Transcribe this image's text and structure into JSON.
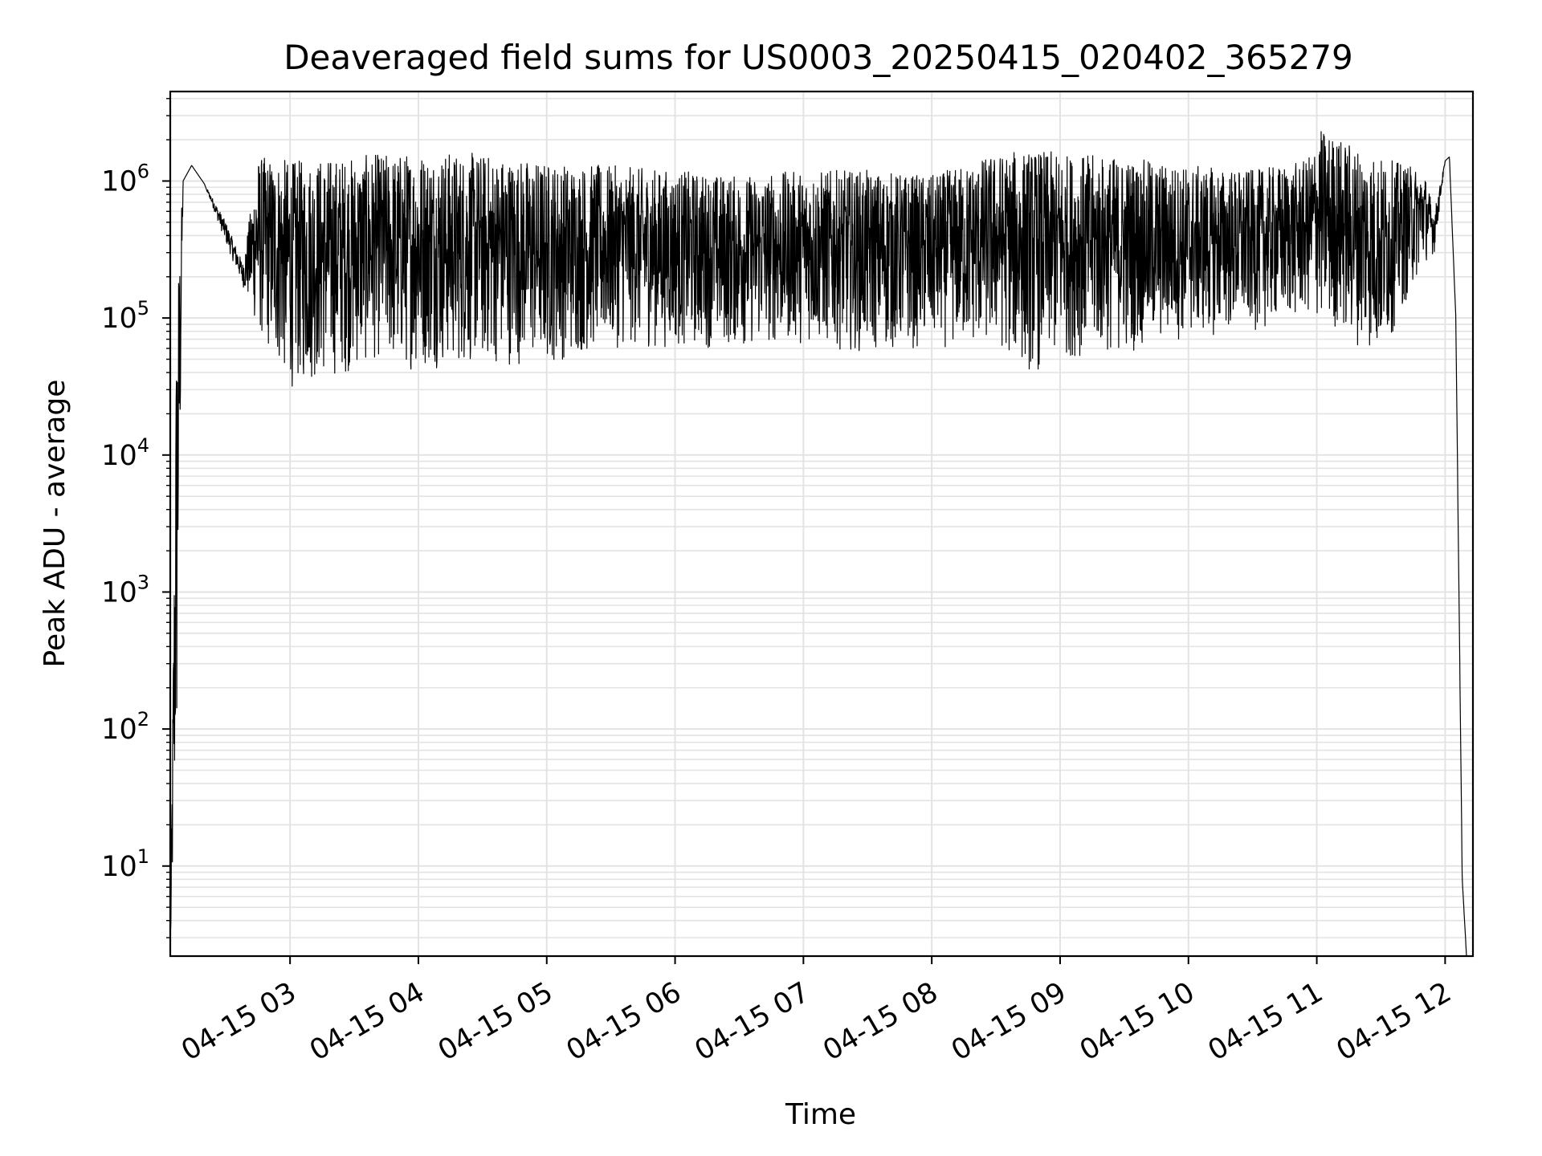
{
  "chart_data": {
    "type": "line",
    "title": "Deaveraged field sums for US0003_20250415_020402_365279",
    "xlabel": "Time",
    "ylabel": "Peak ADU - average",
    "yscale": "log",
    "ylim": [
      2.2,
      4500000
    ],
    "xlim": [
      "2025-04-15 02:04",
      "2025-04-15 12:13"
    ],
    "grid": true,
    "x_ticks": [
      "04-15 03",
      "04-15 04",
      "04-15 05",
      "04-15 06",
      "04-15 07",
      "04-15 08",
      "04-15 09",
      "04-15 10",
      "04-15 11",
      "04-15 12"
    ],
    "y_ticks": [
      {
        "base": "10",
        "exp": "1"
      },
      {
        "base": "10",
        "exp": "2"
      },
      {
        "base": "10",
        "exp": "3"
      },
      {
        "base": "10",
        "exp": "4"
      },
      {
        "base": "10",
        "exp": "5"
      },
      {
        "base": "10",
        "exp": "6"
      }
    ],
    "series": [
      {
        "color": "#000000",
        "envelope": [
          {
            "t": "02:04",
            "lo": 2.2,
            "hi": 2.2
          },
          {
            "t": "02:07",
            "lo": 30,
            "hi": 150000
          },
          {
            "t": "02:10",
            "lo": 1000000,
            "hi": 1000000
          },
          {
            "t": "02:14",
            "lo": 1300000,
            "hi": 1300000
          },
          {
            "t": "02:20",
            "lo": 950000,
            "hi": 950000
          },
          {
            "t": "02:30",
            "lo": 350000,
            "hi": 500000
          },
          {
            "t": "02:38",
            "lo": 170000,
            "hi": 250000
          },
          {
            "t": "02:45",
            "lo": 75000,
            "hi": 1500000
          },
          {
            "t": "02:55",
            "lo": 40000,
            "hi": 1500000
          },
          {
            "t": "03:00",
            "lo": 30000,
            "hi": 1400000
          },
          {
            "t": "03:15",
            "lo": 35000,
            "hi": 1500000
          },
          {
            "t": "03:30",
            "lo": 40000,
            "hi": 1500000
          },
          {
            "t": "03:42",
            "lo": 50000,
            "hi": 1600000
          },
          {
            "t": "03:50",
            "lo": 40000,
            "hi": 1600000
          },
          {
            "t": "04:00",
            "lo": 42000,
            "hi": 1700000
          },
          {
            "t": "04:30",
            "lo": 45000,
            "hi": 1600000
          },
          {
            "t": "05:00",
            "lo": 45000,
            "hi": 1400000
          },
          {
            "t": "05:30",
            "lo": 60000,
            "hi": 1300000
          },
          {
            "t": "06:00",
            "lo": 60000,
            "hi": 1200000
          },
          {
            "t": "06:30",
            "lo": 60000,
            "hi": 1100000
          },
          {
            "t": "07:00",
            "lo": 65000,
            "hi": 1200000
          },
          {
            "t": "07:30",
            "lo": 55000,
            "hi": 1200000
          },
          {
            "t": "08:00",
            "lo": 60000,
            "hi": 1100000
          },
          {
            "t": "08:30",
            "lo": 60000,
            "hi": 1600000
          },
          {
            "t": "08:48",
            "lo": 38000,
            "hi": 1700000
          },
          {
            "t": "09:00",
            "lo": 50000,
            "hi": 1600000
          },
          {
            "t": "09:30",
            "lo": 55000,
            "hi": 1500000
          },
          {
            "t": "10:00",
            "lo": 70000,
            "hi": 1300000
          },
          {
            "t": "10:30",
            "lo": 80000,
            "hi": 1200000
          },
          {
            "t": "10:55",
            "lo": 100000,
            "hi": 1400000
          },
          {
            "t": "11:02",
            "lo": 90000,
            "hi": 2400000
          },
          {
            "t": "11:30",
            "lo": 50000,
            "hi": 1500000
          },
          {
            "t": "11:50",
            "lo": 250000,
            "hi": 1200000
          },
          {
            "t": "11:55",
            "lo": 300000,
            "hi": 600000
          },
          {
            "t": "12:00",
            "lo": 1400000,
            "hi": 1400000
          },
          {
            "t": "12:02",
            "lo": 1500000,
            "hi": 1500000
          },
          {
            "t": "12:05",
            "lo": 100000,
            "hi": 100000
          },
          {
            "t": "12:08",
            "lo": 8,
            "hi": 8
          },
          {
            "t": "12:10",
            "lo": 2.2,
            "hi": 2.2
          }
        ]
      }
    ]
  }
}
